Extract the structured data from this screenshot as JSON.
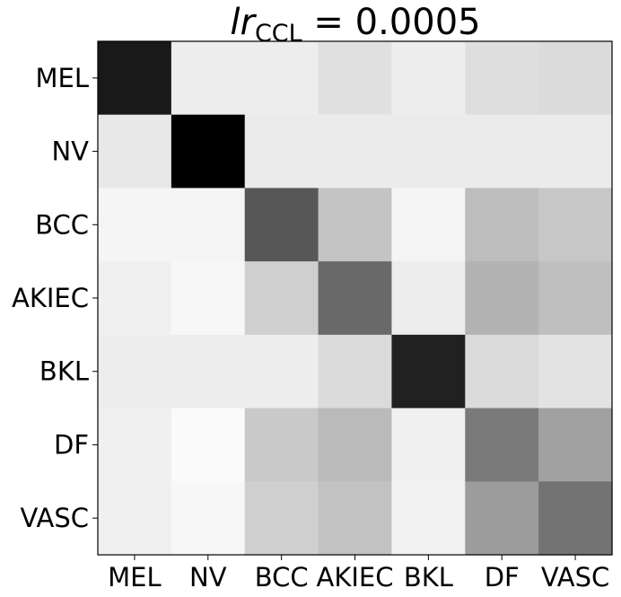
{
  "chart_data": {
    "type": "heatmap",
    "title": {
      "var": "lr",
      "subscript": "CCL",
      "equals": " = ",
      "value": "0.0005"
    },
    "xlabel": "",
    "ylabel": "",
    "x_categories": [
      "MEL",
      "NV",
      "BCC",
      "AKIEC",
      "BKL",
      "DF",
      "VASC"
    ],
    "y_categories": [
      "MEL",
      "NV",
      "BCC",
      "AKIEC",
      "BKL",
      "DF",
      "VASC"
    ],
    "colormap": "grayscale (darker = higher)",
    "values": [
      [
        0.9,
        0.07,
        0.07,
        0.12,
        0.07,
        0.13,
        0.14
      ],
      [
        0.09,
        1.0,
        0.08,
        0.08,
        0.08,
        0.08,
        0.08
      ],
      [
        0.04,
        0.04,
        0.66,
        0.23,
        0.04,
        0.26,
        0.22
      ],
      [
        0.06,
        0.03,
        0.19,
        0.59,
        0.07,
        0.3,
        0.25
      ],
      [
        0.07,
        0.07,
        0.07,
        0.14,
        0.87,
        0.14,
        0.11
      ],
      [
        0.06,
        0.02,
        0.21,
        0.27,
        0.06,
        0.52,
        0.37
      ],
      [
        0.06,
        0.03,
        0.19,
        0.24,
        0.05,
        0.39,
        0.55
      ]
    ],
    "grid": false
  }
}
